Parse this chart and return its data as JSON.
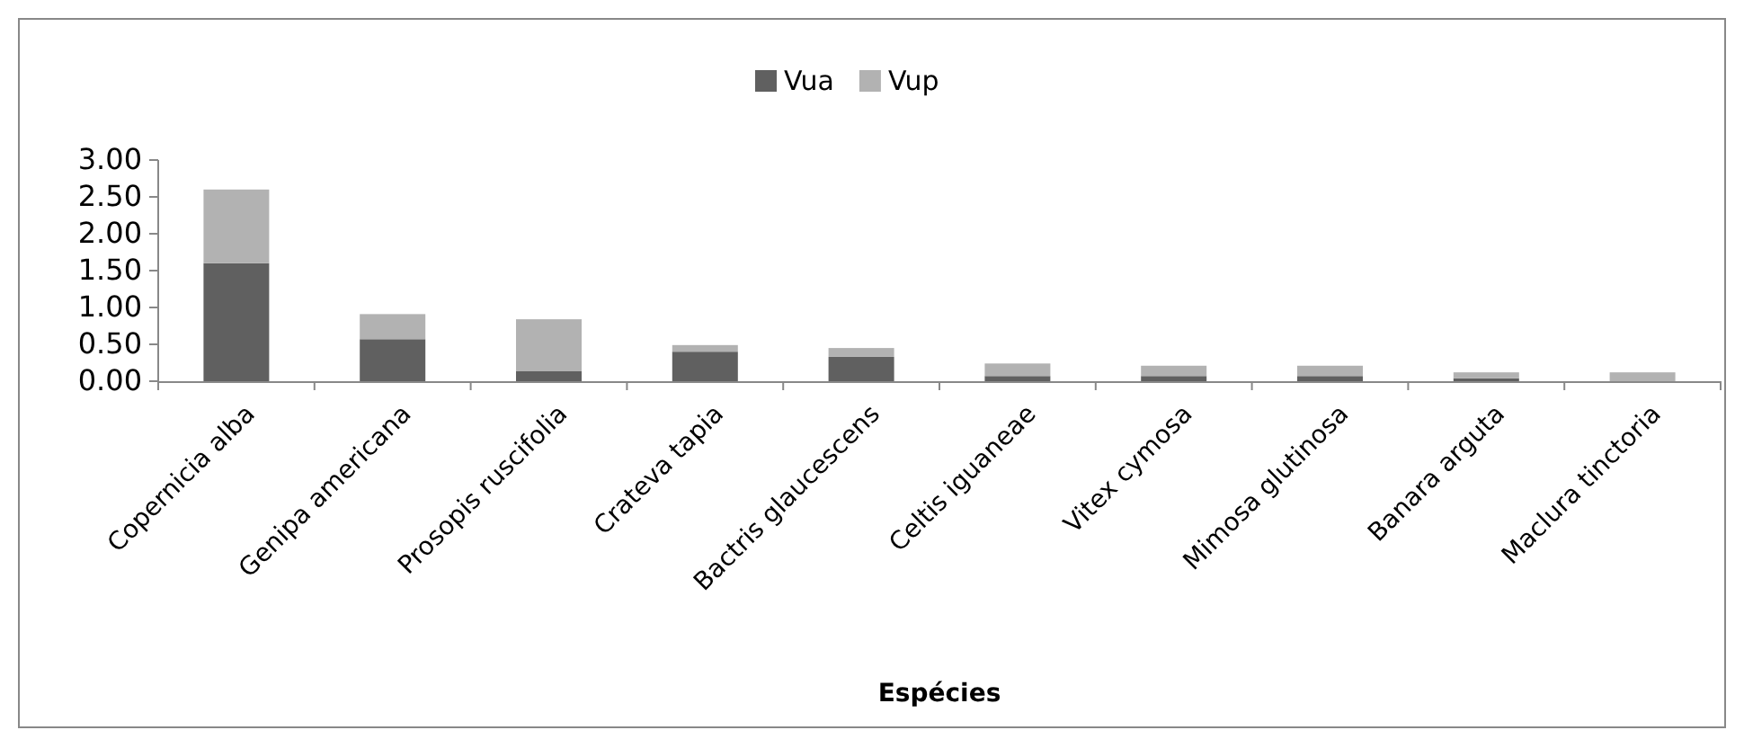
{
  "chart_data": {
    "type": "bar",
    "stacked": true,
    "xlabel": "Espécies",
    "categories": [
      "Copernicia alba",
      "Genipa americana",
      "Prosopis ruscifolia",
      "Crateva tapia",
      "Bactris glaucescens",
      "Celtis iguaneae",
      "Vitex cymosa",
      "Mimosa glutinosa",
      "Banara arguta",
      "Maclura tinctoria"
    ],
    "series": [
      {
        "name": "Vua",
        "color": "#606060",
        "values": [
          1.6,
          0.57,
          0.14,
          0.4,
          0.33,
          0.07,
          0.07,
          0.07,
          0.04,
          0
        ]
      },
      {
        "name": "Vup",
        "color": "#b2b2b2",
        "values": [
          1.0,
          0.34,
          0.7,
          0.09,
          0.12,
          0.17,
          0.14,
          0.14,
          0.08,
          0.12
        ]
      }
    ],
    "ylim": [
      0,
      3
    ],
    "yticks": [
      {
        "value": 0,
        "label": "0.00"
      },
      {
        "value": 0.5,
        "label": "0.50"
      },
      {
        "value": 1,
        "label": "1.00"
      },
      {
        "value": 1.5,
        "label": "1.50"
      },
      {
        "value": 2,
        "label": "2.00"
      },
      {
        "value": 2.5,
        "label": "2.50"
      },
      {
        "value": 3,
        "label": "3.00"
      }
    ],
    "grid": false,
    "legend": "top"
  }
}
